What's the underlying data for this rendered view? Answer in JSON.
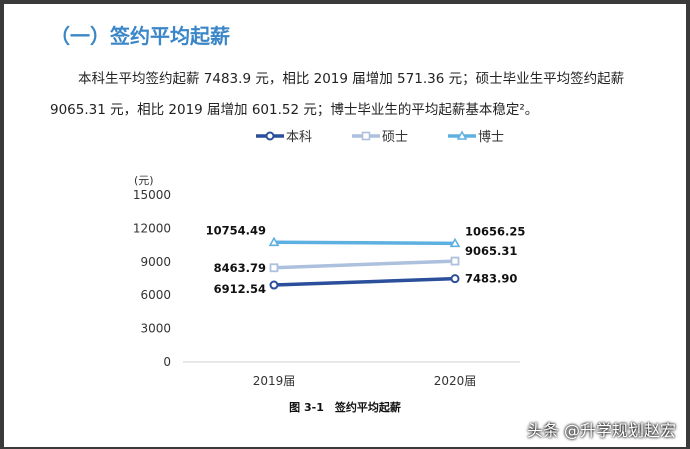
{
  "heading": "（一）签约平均起薪",
  "paragraph": {
    "line1": "本科生平均签约起薪 7483.9 元，相比 2019 届增加 571.36 元；硕士毕业生平均签约起薪",
    "line2": "9065.31 元，相比 2019 届增加 601.52 元；博士毕业生的平均起薪基本稳定²。"
  },
  "caption": "图 3-1　签约平均起薪",
  "watermark": "头条 @升学规划赵宏",
  "chart_data": {
    "type": "line",
    "title": "",
    "ylabel": "(元)",
    "xlabel": "",
    "ylim": [
      0,
      15000
    ],
    "yticks": [
      "0",
      "3000",
      "6000",
      "9000",
      "12000",
      "15000"
    ],
    "categories": [
      "2019届",
      "2020届"
    ],
    "legend_position": "top",
    "grid": false,
    "series": [
      {
        "name": "本科",
        "values": [
          6912.54,
          7483.9
        ],
        "labels": [
          "6912.54",
          "7483.90"
        ],
        "color": "#2b4f9a",
        "marker": "circle"
      },
      {
        "name": "硕士",
        "values": [
          8463.79,
          9065.31
        ],
        "labels": [
          "8463.79",
          "9065.31"
        ],
        "color": "#adc0de",
        "marker": "square"
      },
      {
        "name": "博士",
        "values": [
          10754.49,
          10656.25
        ],
        "labels": [
          "10754.49",
          "10656.25"
        ],
        "color": "#5eb0e0",
        "marker": "triangle"
      }
    ]
  }
}
